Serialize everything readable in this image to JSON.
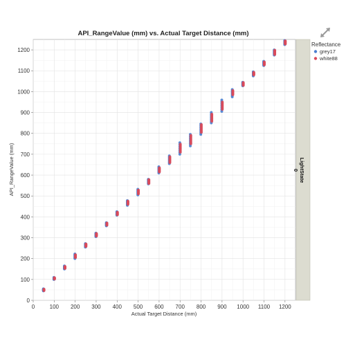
{
  "chart_data": {
    "type": "scatter",
    "title": "API_RangeValue (mm) vs. Actual Target Distance (mm)",
    "xlabel": "Actual Target Distance (mm)",
    "ylabel": "API_RangeValue (mm)",
    "xlim": [
      0,
      1250
    ],
    "ylim": [
      0,
      1250
    ],
    "xticks": [
      0,
      100,
      200,
      300,
      400,
      500,
      600,
      700,
      800,
      900,
      1000,
      1100,
      1200
    ],
    "yticks": [
      0,
      100,
      200,
      300,
      400,
      500,
      600,
      700,
      800,
      900,
      1000,
      1100,
      1200
    ],
    "grid": true,
    "legend": {
      "title": "Reflectance",
      "placement": "right"
    },
    "facet": {
      "label": "LightState",
      "value": "0"
    },
    "series": [
      {
        "name": "grey17",
        "color": "#4a7fd0",
        "x": [
          50,
          100,
          150,
          200,
          250,
          300,
          350,
          400,
          450,
          500,
          550,
          600,
          650,
          700,
          750,
          800,
          850,
          900,
          950,
          1000,
          1050,
          1100,
          1150,
          1200
        ],
        "y_min": [
          45,
          100,
          150,
          200,
          255,
          305,
          357,
          408,
          455,
          505,
          558,
          610,
          655,
          700,
          740,
          795,
          850,
          905,
          975,
          1028,
          1075,
          1125,
          1175,
          1225
        ],
        "y_max": [
          55,
          110,
          165,
          222,
          272,
          322,
          372,
          425,
          478,
          532,
          580,
          640,
          692,
          755,
          795,
          845,
          900,
          960,
          1010,
          1045,
          1095,
          1145,
          1200,
          1245
        ]
      },
      {
        "name": "white88",
        "color": "#d94a5a",
        "x": [
          50,
          100,
          150,
          200,
          250,
          300,
          350,
          400,
          450,
          500,
          550,
          600,
          650,
          700,
          750,
          800,
          850,
          900,
          950,
          1000,
          1050,
          1100,
          1150,
          1200
        ],
        "y_min": [
          47,
          102,
          153,
          205,
          258,
          308,
          360,
          410,
          460,
          510,
          560,
          615,
          660,
          710,
          750,
          805,
          858,
          915,
          985,
          1030,
          1080,
          1128,
          1178,
          1228
        ],
        "y_max": [
          53,
          108,
          162,
          218,
          270,
          320,
          370,
          422,
          475,
          528,
          578,
          635,
          688,
          748,
          790,
          842,
          892,
          950,
          1005,
          1043,
          1092,
          1142,
          1198,
          1243
        ]
      }
    ]
  }
}
